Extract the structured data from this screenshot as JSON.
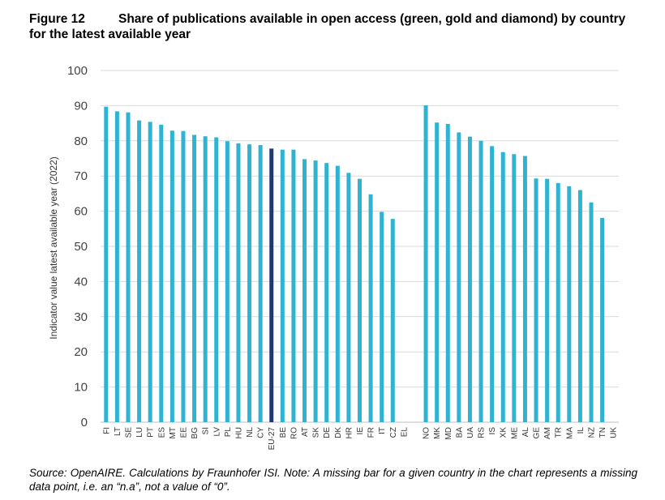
{
  "figure": {
    "number": "Figure 12",
    "title": "Share of publications available in open access (green, gold and diamond) by country for the latest available year"
  },
  "source": "Source: OpenAIRE. Calculations by Fraunhofer ISI. Note: A missing bar for a given country in the chart represents a missing data point, i.e. an “n.a”, not a value of “0”.",
  "colors": {
    "bar": "#2fb3d2",
    "highlight": "#1f3a6b",
    "grid": "#d9d9d9"
  },
  "chart_data": {
    "type": "bar",
    "title": "Share of publications available in open access (green, gold and diamond) by country for the latest available year",
    "xlabel": "",
    "ylabel": "Indicator value latest available year (2022)",
    "ylim": [
      0,
      100
    ],
    "yticks": [
      0,
      10,
      20,
      30,
      40,
      50,
      60,
      70,
      80,
      90,
      100
    ],
    "grid": true,
    "highlight": [
      "EU-27"
    ],
    "categories": [
      "FI",
      "LT",
      "SE",
      "LU",
      "PT",
      "ES",
      "MT",
      "EE",
      "BG",
      "SI",
      "LV",
      "PL",
      "HU",
      "NL",
      "CY",
      "EU-27",
      "BE",
      "RO",
      "AT",
      "SK",
      "DE",
      "DK",
      "HR",
      "IE",
      "FR",
      "IT",
      "CZ",
      "EL",
      "",
      "NO",
      "MK",
      "MD",
      "BA",
      "UA",
      "RS",
      "IS",
      "XK",
      "ME",
      "AL",
      "GE",
      "AM",
      "TR",
      "MA",
      "IL",
      "NZ",
      "TN",
      "UK"
    ],
    "values": [
      89.7,
      88.4,
      88.1,
      85.8,
      85.4,
      84.6,
      82.9,
      82.8,
      81.7,
      81.3,
      81.0,
      79.9,
      79.3,
      79.0,
      78.8,
      77.8,
      77.5,
      77.5,
      74.8,
      74.4,
      73.7,
      72.9,
      70.9,
      69.2,
      64.8,
      59.8,
      57.8,
      null,
      null,
      90.1,
      85.2,
      84.8,
      82.4,
      81.2,
      80.0,
      78.5,
      76.8,
      76.2,
      75.7,
      69.3,
      69.2,
      68.0,
      67.1,
      66.0,
      62.5,
      58.1,
      null
    ]
  }
}
